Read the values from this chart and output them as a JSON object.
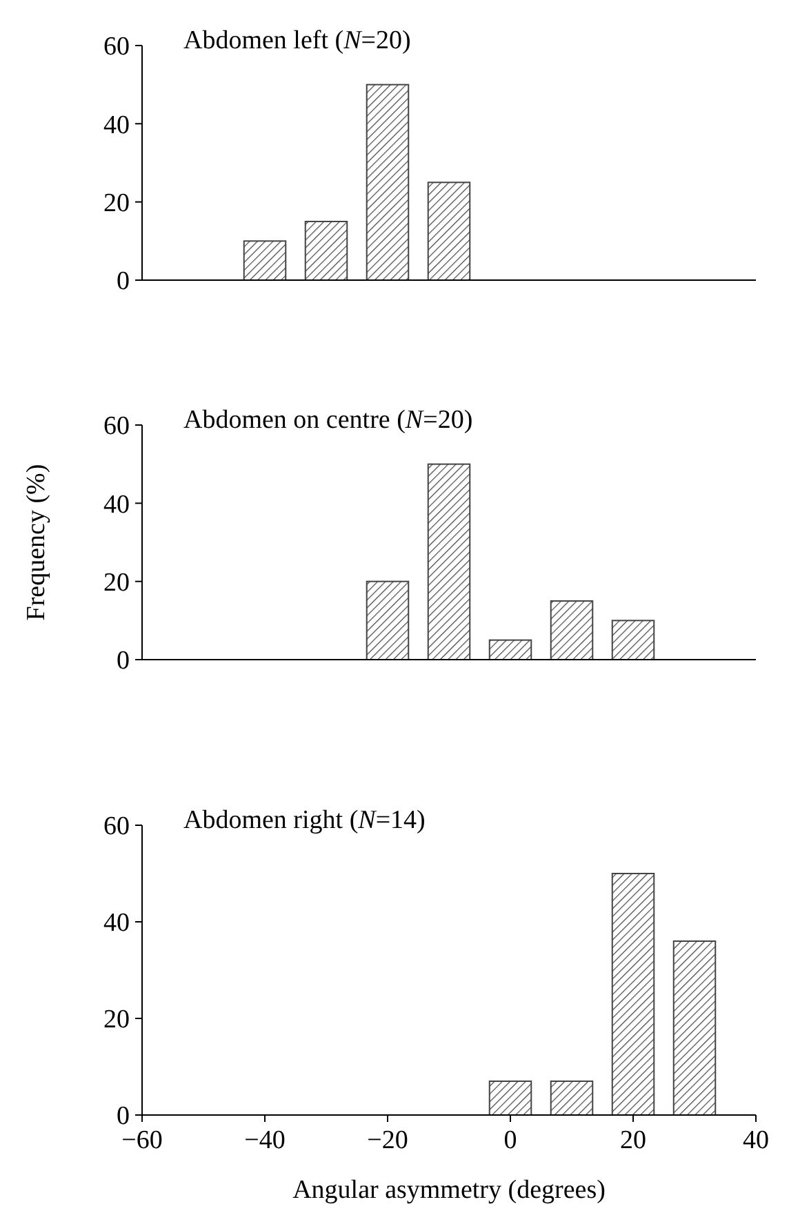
{
  "chart_data": [
    {
      "type": "histogram",
      "title": "Abdomen left (N=20)",
      "bins": [
        -45,
        -35,
        -25,
        -15,
        -5
      ],
      "values": [
        10,
        15,
        50,
        25
      ],
      "color": "#444444",
      "xlim": [
        -60,
        40
      ],
      "ylim": [
        0,
        60
      ],
      "yticks": [
        0,
        20,
        40,
        60
      ],
      "tick_labels": "y"
    },
    {
      "type": "histogram",
      "title": "Abdomen on centre (N=20)",
      "ylabel": "Frequency (%)",
      "bins": [
        -25,
        -15,
        -5,
        5,
        15,
        25
      ],
      "values": [
        20,
        50,
        5,
        15,
        10
      ],
      "color": "#444444",
      "xlim": [
        -60,
        40
      ],
      "ylim": [
        0,
        60
      ],
      "yticks": [
        0,
        20,
        40,
        60
      ],
      "tick_labels": "y"
    },
    {
      "type": "histogram",
      "title": "Abdomen right (N=14)",
      "xlabel": "Angular asymmetry (degrees)",
      "bins": [
        -5,
        5,
        15,
        25,
        35
      ],
      "values": [
        7,
        7,
        50,
        36
      ],
      "color": "#444444",
      "xlim": [
        -60,
        40
      ],
      "xticks": [
        -60,
        -40,
        -20,
        0,
        20,
        40
      ],
      "ylim": [
        0,
        60
      ],
      "yticks": [
        0,
        20,
        40,
        60
      ]
    }
  ]
}
